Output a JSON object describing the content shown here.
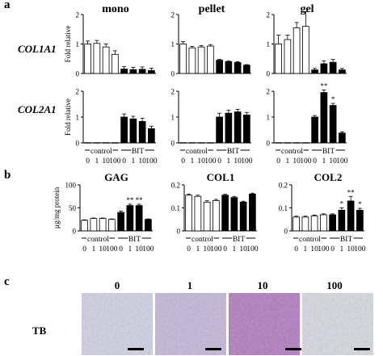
{
  "panel_letters": [
    "a",
    "b",
    "c"
  ],
  "column_titles": [
    "mono",
    "pellet",
    "gel"
  ],
  "row_labels": [
    "COL1A1",
    "COL2A1"
  ],
  "ylabel_a": "Fold relative",
  "ylabel_b": "µg/mg protein",
  "dose_labels": [
    "0",
    "1",
    "10",
    "100"
  ],
  "group_labels": [
    "control",
    "BIT"
  ],
  "panel_c": {
    "row_label": "TB",
    "image_labels": [
      "0",
      "1",
      "10",
      "100"
    ]
  },
  "colors": {
    "control_fill": "#ffffff",
    "bit_fill": "#000000",
    "axis": "#000000",
    "histology_1": "#cfcfe1",
    "histology_2": "#c2b6d8",
    "histology_3": "#b07cc0",
    "histology_4": "#d6d6e0"
  },
  "chart_data": [
    {
      "type": "bar",
      "panel": "a",
      "row": "COL1A1",
      "column": "mono",
      "ylim": [
        0,
        2
      ],
      "yticks": [
        "0",
        "1",
        "2"
      ],
      "categories": [
        "control 0",
        "control 1",
        "control 10",
        "control 100",
        "BIT 0",
        "BIT 1",
        "BIT 10",
        "BIT 100"
      ],
      "values": [
        1.0,
        1.02,
        0.9,
        0.65,
        0.15,
        0.13,
        0.14,
        0.1
      ],
      "errors": [
        0.1,
        0.1,
        0.1,
        0.12,
        0.08,
        0.08,
        0.08,
        0.08
      ],
      "significance": [
        "",
        "",
        "",
        "",
        "",
        "",
        "",
        ""
      ]
    },
    {
      "type": "bar",
      "panel": "a",
      "row": "COL1A1",
      "column": "pellet",
      "ylim": [
        0,
        2
      ],
      "yticks": [
        "0",
        "1",
        "2"
      ],
      "categories": [
        "control 0",
        "control 1",
        "control 10",
        "control 100",
        "BIT 0",
        "BIT 1",
        "BIT 10",
        "BIT 100"
      ],
      "values": [
        1.0,
        0.87,
        0.9,
        0.93,
        0.45,
        0.4,
        0.37,
        0.28
      ],
      "errors": [
        0.08,
        0.05,
        0.05,
        0.05,
        0.03,
        0.03,
        0.03,
        0.02
      ],
      "significance": [
        "",
        "",
        "",
        "",
        "",
        "",
        "",
        ""
      ]
    },
    {
      "type": "bar",
      "panel": "a",
      "row": "COL1A1",
      "column": "gel",
      "ylim": [
        0,
        2
      ],
      "yticks": [
        "0",
        "1",
        "2"
      ],
      "categories": [
        "control 0",
        "control 1",
        "control 10",
        "control 100",
        "BIT 0",
        "BIT 1",
        "BIT 10",
        "BIT 100"
      ],
      "values": [
        1.0,
        1.15,
        1.55,
        1.6,
        0.12,
        0.33,
        0.38,
        0.12
      ],
      "errors": [
        0.3,
        0.15,
        0.18,
        0.5,
        0.05,
        0.1,
        0.1,
        0.05
      ],
      "significance": [
        "",
        "",
        "",
        "",
        "",
        "",
        "",
        ""
      ]
    },
    {
      "type": "bar",
      "panel": "a",
      "row": "COL2A1",
      "column": "mono",
      "ylim": [
        0,
        2
      ],
      "yticks": [
        "0",
        "1",
        "2"
      ],
      "categories": [
        "control 0",
        "control 1",
        "control 10",
        "control 100",
        "BIT 0",
        "BIT 1",
        "BIT 10",
        "BIT 100"
      ],
      "values": [
        0.01,
        0.01,
        0.01,
        0.01,
        1.0,
        0.93,
        0.83,
        0.55
      ],
      "errors": [
        0,
        0,
        0,
        0,
        0.12,
        0.1,
        0.12,
        0.1
      ],
      "significance": [
        "",
        "",
        "",
        "",
        "",
        "",
        "",
        ""
      ]
    },
    {
      "type": "bar",
      "panel": "a",
      "row": "COL2A1",
      "column": "pellet",
      "ylim": [
        0,
        2
      ],
      "yticks": [
        "0",
        "1",
        "2"
      ],
      "categories": [
        "control 0",
        "control 1",
        "control 10",
        "control 100",
        "BIT 0",
        "BIT 1",
        "BIT 10",
        "BIT 100"
      ],
      "values": [
        0.01,
        0.01,
        0.01,
        0.01,
        1.0,
        1.15,
        1.2,
        1.08
      ],
      "errors": [
        0,
        0,
        0,
        0,
        0.15,
        0.12,
        0.1,
        0.1
      ],
      "significance": [
        "",
        "",
        "",
        "",
        "",
        "",
        "",
        ""
      ]
    },
    {
      "type": "bar",
      "panel": "a",
      "row": "COL2A1",
      "column": "gel",
      "ylim": [
        0,
        2
      ],
      "yticks": [
        "0",
        "1",
        "2"
      ],
      "categories": [
        "control 0",
        "control 1",
        "control 10",
        "control 100",
        "BIT 0",
        "BIT 1",
        "BIT 10",
        "BIT 100"
      ],
      "values": [
        0.01,
        0.01,
        0.01,
        0.01,
        1.0,
        1.95,
        1.45,
        0.38
      ],
      "errors": [
        0,
        0,
        0,
        0,
        0.06,
        0.1,
        0.08,
        0.05
      ],
      "significance": [
        "",
        "",
        "",
        "",
        "",
        "**",
        "*",
        ""
      ]
    },
    {
      "type": "bar",
      "panel": "b",
      "title": "GAG",
      "ylim": [
        0,
        100
      ],
      "yticks": [
        "0",
        "50",
        "100"
      ],
      "categories": [
        "control 0",
        "control 1",
        "control 10",
        "control 100",
        "BIT 0",
        "BIT 1",
        "BIT 10",
        "BIT 100"
      ],
      "values": [
        23,
        27,
        27,
        25,
        40,
        55,
        55,
        25
      ],
      "errors": [
        1,
        1,
        1,
        1,
        3,
        3,
        3,
        1
      ],
      "significance": [
        "",
        "",
        "",
        "",
        "",
        "**",
        "**",
        ""
      ]
    },
    {
      "type": "bar",
      "panel": "b",
      "title": "COL1",
      "ylim": [
        0,
        0.2
      ],
      "yticks": [
        "0",
        "0.1",
        "0.2"
      ],
      "categories": [
        "control 0",
        "control 1",
        "control 10",
        "control 100",
        "BIT 0",
        "BIT 1",
        "BIT 10",
        "BIT 100"
      ],
      "values": [
        0.155,
        0.15,
        0.125,
        0.132,
        0.155,
        0.145,
        0.125,
        0.16
      ],
      "errors": [
        0.005,
        0.005,
        0.006,
        0.005,
        0.004,
        0.005,
        0.004,
        0.004
      ],
      "significance": [
        "",
        "",
        "",
        "",
        "",
        "",
        "",
        ""
      ]
    },
    {
      "type": "bar",
      "panel": "b",
      "title": "COL2",
      "ylim": [
        0,
        0.2
      ],
      "yticks": [
        "0",
        "0.1",
        "0.2"
      ],
      "categories": [
        "control 0",
        "control 1",
        "control 10",
        "control 100",
        "BIT 0",
        "BIT 1",
        "BIT 10",
        "BIT 100"
      ],
      "values": [
        0.06,
        0.06,
        0.065,
        0.07,
        0.07,
        0.09,
        0.13,
        0.09
      ],
      "errors": [
        0.004,
        0.004,
        0.004,
        0.004,
        0.004,
        0.01,
        0.02,
        0.008
      ],
      "significance": [
        "",
        "",
        "",
        "",
        "",
        "*",
        "**",
        "*"
      ]
    }
  ]
}
